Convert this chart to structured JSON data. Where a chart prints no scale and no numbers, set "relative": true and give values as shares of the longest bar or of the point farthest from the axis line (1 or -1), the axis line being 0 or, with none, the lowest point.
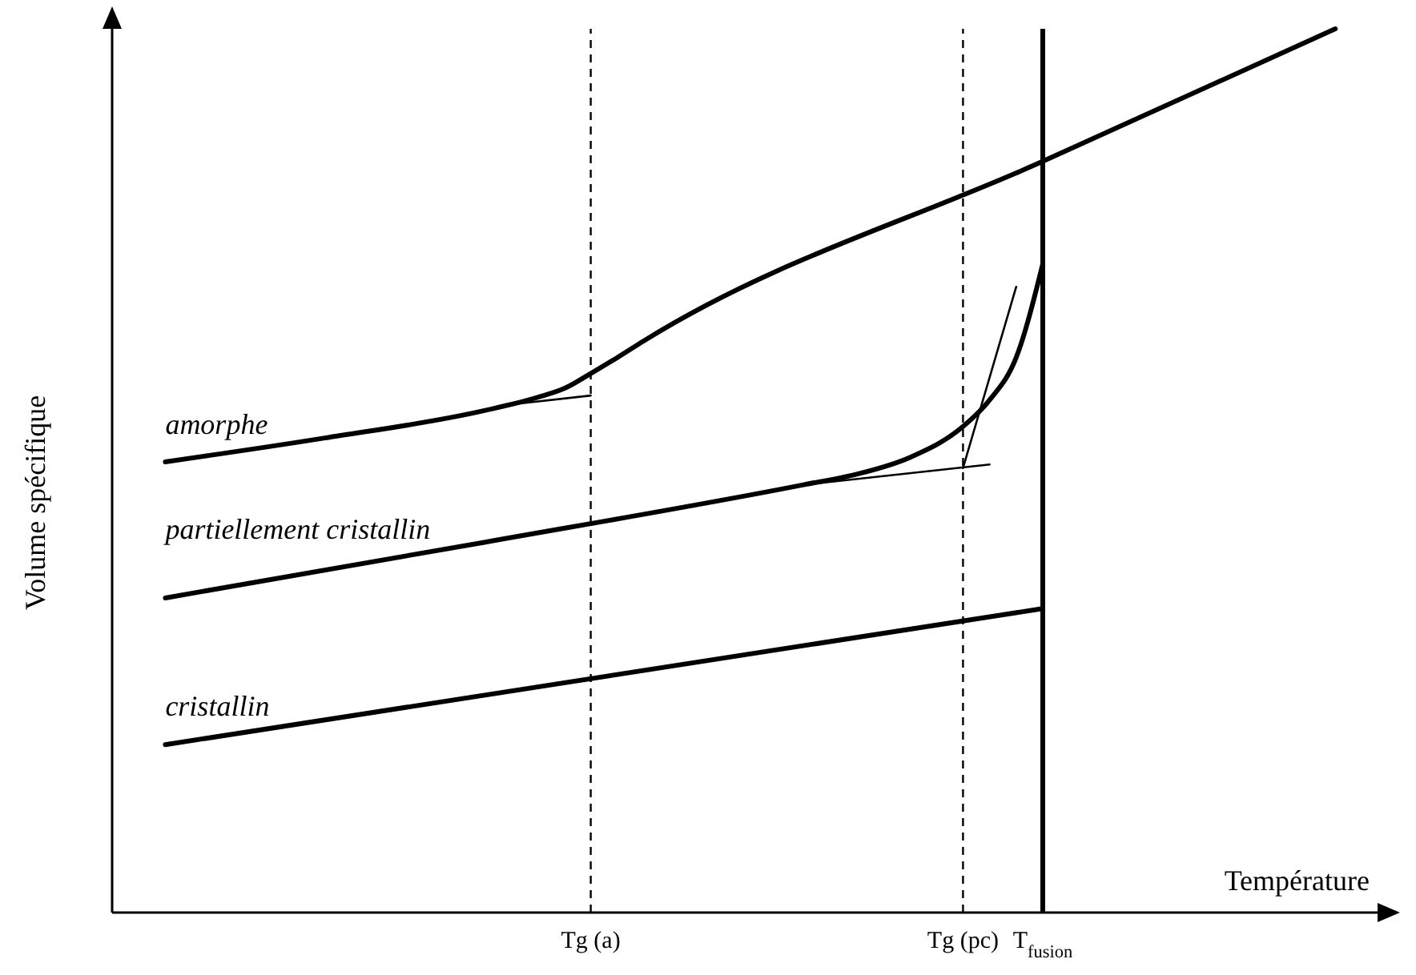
{
  "chart_data": {
    "type": "line",
    "relative": true,
    "xlabel": "Température",
    "ylabel": "Volume spécifique",
    "categories": [
      null,
      null,
      null,
      null,
      null,
      null,
      null,
      null,
      null,
      null,
      null,
      null,
      null,
      null,
      null,
      null,
      null,
      null,
      "Tg (a)",
      null,
      null,
      null,
      null,
      null,
      null,
      null,
      null,
      null,
      null,
      null,
      null,
      null,
      "Tg (pc)",
      null,
      null,
      "T$_{fusion}$",
      null,
      null,
      null,
      null,
      null,
      null,
      null,
      null,
      null,
      null,
      null,
      null
    ],
    "grid": false,
    "legend": false,
    "marker": "none",
    "line_style": "solid",
    "ref_lines": [
      {
        "axis": "x",
        "value": "Tg (a)",
        "line_style": "dashed",
        "color": "#000000"
      },
      {
        "axis": "x",
        "value": "Tg (pc)",
        "line_style": "dashed",
        "color": "#000000"
      },
      {
        "axis": "x",
        "value": "T$_{fusion}$",
        "line_style": "solid",
        "color": "#000000"
      }
    ],
    "series": [
      {
        "name": "amorphe",
        "color": "#000000",
        "values": [
          null,
          null,
          0.51,
          null,
          null,
          null,
          null,
          null,
          0.537,
          null,
          null,
          null,
          null,
          null,
          0.568,
          null,
          0.583,
          0.593,
          0.61,
          0.628,
          0.647,
          null,
          null,
          null,
          null,
          null,
          null,
          null,
          null,
          null,
          null,
          null,
          null,
          null,
          null,
          0.85,
          null,
          null,
          null,
          null,
          null,
          null,
          null,
          null,
          null,
          null,
          1.0,
          null
        ]
      },
      {
        "name": "partiellement cristallin",
        "color": "#000000",
        "values": [
          null,
          null,
          0.356,
          null,
          null,
          null,
          null,
          null,
          null,
          null,
          null,
          null,
          null,
          null,
          0.419,
          null,
          null,
          null,
          null,
          null,
          null,
          null,
          null,
          null,
          null,
          null,
          0.484,
          null,
          0.496,
          null,
          0.515,
          null,
          0.55,
          0.58,
          0.628,
          0.734,
          null,
          null,
          null,
          null,
          null,
          null,
          null,
          null,
          null,
          null,
          null,
          null
        ]
      },
      {
        "name": "cristallin",
        "color": "#000000",
        "values": [
          null,
          null,
          0.19,
          null,
          null,
          null,
          null,
          null,
          null,
          null,
          null,
          null,
          null,
          null,
          null,
          null,
          null,
          null,
          null,
          null,
          null,
          null,
          null,
          null,
          null,
          null,
          null,
          null,
          null,
          null,
          null,
          null,
          null,
          null,
          null,
          0.344,
          null,
          null,
          null,
          null,
          null,
          null,
          null,
          null,
          null,
          null,
          null,
          null
        ]
      },
      {
        "color": "#000000",
        "values": [
          null,
          null,
          null,
          null,
          null,
          null,
          null,
          null,
          null,
          null,
          null,
          null,
          null,
          null,
          null,
          0.575,
          null,
          null,
          0.585,
          null,
          null,
          null,
          null,
          null,
          null,
          null,
          null,
          null,
          null,
          null,
          null,
          null,
          null,
          null,
          null,
          null,
          null,
          null,
          null,
          null,
          null,
          null,
          null,
          null,
          null,
          null,
          null,
          null
        ]
      },
      {
        "color": "#000000",
        "values": [
          null,
          null,
          null,
          null,
          null,
          null,
          null,
          null,
          null,
          null,
          null,
          null,
          null,
          null,
          null,
          null,
          null,
          null,
          null,
          null,
          null,
          null,
          null,
          null,
          null,
          null,
          0.484,
          null,
          null,
          null,
          null,
          null,
          null,
          0.507,
          null,
          null,
          null,
          null,
          null,
          null,
          null,
          null,
          null,
          null,
          null,
          null,
          null,
          null
        ]
      },
      {
        "color": "#000000",
        "values": [
          null,
          null,
          null,
          null,
          null,
          null,
          null,
          null,
          null,
          null,
          null,
          null,
          null,
          null,
          null,
          null,
          null,
          null,
          null,
          null,
          null,
          null,
          null,
          null,
          null,
          null,
          null,
          null,
          null,
          null,
          null,
          null,
          0.503,
          null,
          0.708,
          null,
          null,
          null,
          null,
          null,
          null,
          null,
          null,
          null,
          null,
          null,
          null,
          null
        ]
      }
    ]
  }
}
